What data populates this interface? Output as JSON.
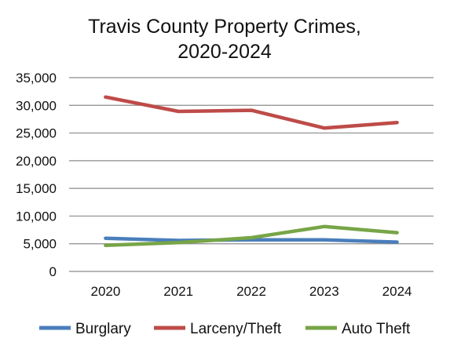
{
  "chart_data": {
    "type": "line",
    "title_lines": [
      "Travis County Property Crimes,",
      "2020-2024"
    ],
    "categories": [
      "2020",
      "2021",
      "2022",
      "2023",
      "2024"
    ],
    "ylim": [
      0,
      35000
    ],
    "yticks": [
      0,
      5000,
      10000,
      15000,
      20000,
      25000,
      30000,
      35000
    ],
    "ytick_labels": [
      "0",
      "5,000",
      "10,000",
      "15,000",
      "20,000",
      "25,000",
      "30,000",
      "35,000"
    ],
    "grid": true,
    "legend_position": "bottom",
    "series": [
      {
        "name": "Burglary",
        "color": "#4a7ebb",
        "values": [
          6000,
          5600,
          5700,
          5700,
          5300
        ]
      },
      {
        "name": "Larceny/Theft",
        "color": "#be4b48",
        "values": [
          31500,
          28900,
          29100,
          25900,
          26900
        ]
      },
      {
        "name": "Auto Theft",
        "color": "#77a547",
        "values": [
          4700,
          5200,
          6100,
          8100,
          7000
        ]
      }
    ]
  }
}
